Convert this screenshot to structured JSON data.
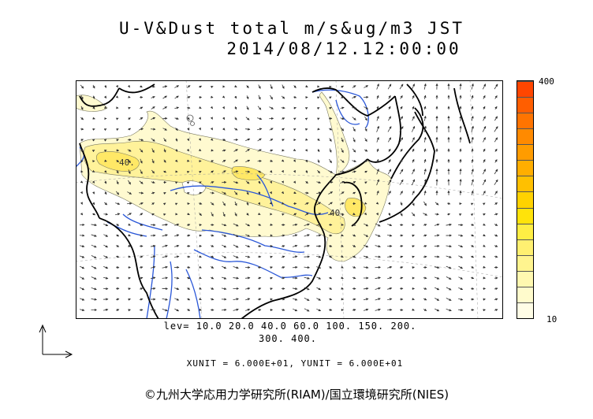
{
  "title": {
    "line1": "U-V&Dust total m/s&ug/m3 JST",
    "line2": "2014/08/12.12:00:00"
  },
  "colorbar": {
    "max_label": "400",
    "min_label": "10",
    "colors": [
      "#fffde6",
      "#fffbcc",
      "#fff8b0",
      "#fff48f",
      "#fff071",
      "#ffee44",
      "#ffe30a",
      "#ffd200",
      "#ffc000",
      "#ffae00",
      "#ff9c00",
      "#ff8a00",
      "#ff7400",
      "#ff5e00",
      "#ff4600"
    ]
  },
  "contours": {
    "label_a": "40.",
    "label_b": "40."
  },
  "levels": {
    "line1": "lev= 10.0 20.0 40.0 60.0 100. 150. 200.",
    "line2": "300. 400."
  },
  "units": {
    "text": "XUNIT = 6.000E+01, YUNIT = 6.000E+01"
  },
  "copyright": "©九州大学応用力学研究所(RIAM)/国立環境研究所(NIES)",
  "palette": {
    "dust_light": "#fffad0",
    "dust_mid": "#fff29a",
    "dust_strong": "#ffe866",
    "coast": "#000000",
    "river": "#2a57d8",
    "arrow": "#333333"
  },
  "icons": {
    "reference_arrow": "reference-vector-icon"
  }
}
